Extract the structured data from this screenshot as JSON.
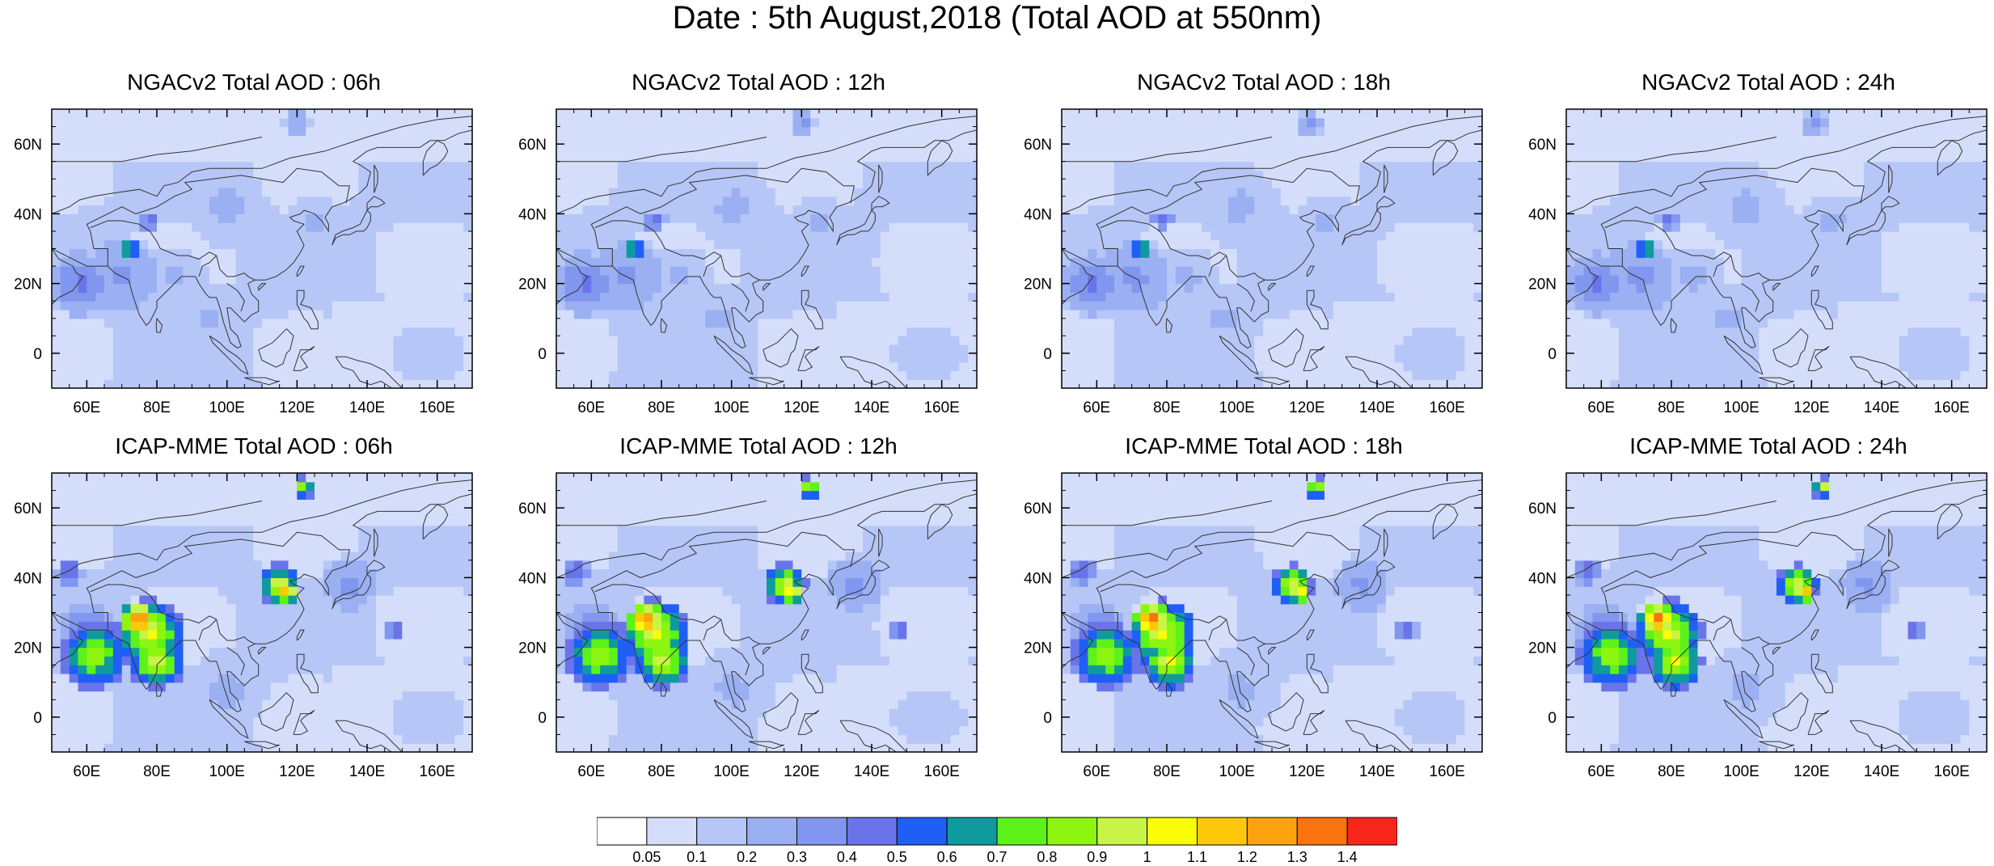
{
  "title": "Date : 5th August,2018 (Total AOD at 550nm)",
  "panels": [
    {
      "title": "NGACv2 Total AOD : 06h",
      "model": "NGACv2",
      "hour": "06h"
    },
    {
      "title": "NGACv2 Total AOD : 12h",
      "model": "NGACv2",
      "hour": "12h"
    },
    {
      "title": "NGACv2 Total AOD : 18h",
      "model": "NGACv2",
      "hour": "18h"
    },
    {
      "title": "NGACv2 Total AOD : 24h",
      "model": "NGACv2",
      "hour": "24h"
    },
    {
      "title": "ICAP-MME Total AOD : 06h",
      "model": "ICAP-MME",
      "hour": "06h"
    },
    {
      "title": "ICAP-MME Total AOD : 12h",
      "model": "ICAP-MME",
      "hour": "12h"
    },
    {
      "title": "ICAP-MME Total AOD : 18h",
      "model": "ICAP-MME",
      "hour": "18h"
    },
    {
      "title": "ICAP-MME Total AOD : 24h",
      "model": "ICAP-MME",
      "hour": "24h"
    }
  ],
  "map_extent": {
    "lon_min": 50,
    "lon_max": 170,
    "lat_min": -10,
    "lat_max": 70
  },
  "x_ticks": [
    {
      "value": 60,
      "label": "60E"
    },
    {
      "value": 80,
      "label": "80E"
    },
    {
      "value": 100,
      "label": "100E"
    },
    {
      "value": 120,
      "label": "120E"
    },
    {
      "value": 140,
      "label": "140E"
    },
    {
      "value": 160,
      "label": "160E"
    }
  ],
  "y_ticks": [
    {
      "value": 60,
      "label": "60N"
    },
    {
      "value": 40,
      "label": "40N"
    },
    {
      "value": 20,
      "label": "20N"
    },
    {
      "value": 0,
      "label": "0"
    }
  ],
  "colorbar": {
    "labels": [
      "0.05",
      "0.1",
      "0.2",
      "0.3",
      "0.4",
      "0.5",
      "0.6",
      "0.7",
      "0.8",
      "0.9",
      "1",
      "1.1",
      "1.2",
      "1.3",
      "1.4"
    ],
    "colors": [
      "#ffffff",
      "#d4defb",
      "#b6c6f6",
      "#9ab0f2",
      "#8196ee",
      "#6a74ea",
      "#1f5ff5",
      "#0f9b9e",
      "#5ef21b",
      "#8df50f",
      "#c8f545",
      "#fbfc0a",
      "#fdc80a",
      "#fca30e",
      "#fb730c",
      "#f8261a"
    ]
  },
  "colors": {
    "land_outline": "#333333",
    "background": "#ffffff"
  }
}
